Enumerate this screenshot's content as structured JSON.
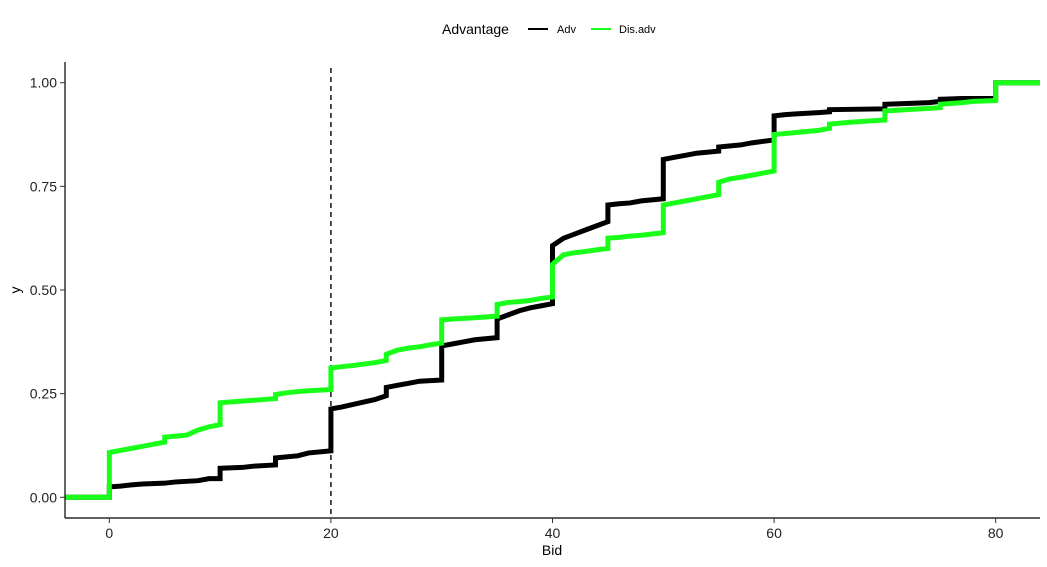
{
  "chart_data": {
    "type": "line",
    "subtype": "step-ecdf",
    "title": "",
    "xlabel": "Bid",
    "ylabel": "y",
    "xlim": [
      -4,
      84
    ],
    "ylim": [
      -0.05,
      1.05
    ],
    "x_ticks": [
      0,
      20,
      40,
      60,
      80
    ],
    "x_tick_labels": [
      "0",
      "20",
      "40",
      "60",
      "80"
    ],
    "y_ticks": [
      0,
      0.25,
      0.5,
      0.75,
      1.0
    ],
    "y_tick_labels": [
      "0.00",
      "0.25",
      "0.50",
      "0.75",
      "1.00"
    ],
    "grid": false,
    "legend": {
      "title": "Advantage",
      "position": "top"
    },
    "reference_line": {
      "x": 20,
      "style": "dashed",
      "color": "#000000"
    },
    "series": [
      {
        "name": "Adv",
        "color": "#000000",
        "points": [
          [
            -4,
            0.0
          ],
          [
            0,
            0.0
          ],
          [
            0,
            0.025
          ],
          [
            1,
            0.027
          ],
          [
            2,
            0.03
          ],
          [
            3,
            0.032
          ],
          [
            5,
            0.034
          ],
          [
            6,
            0.037
          ],
          [
            8,
            0.04
          ],
          [
            9,
            0.045
          ],
          [
            10,
            0.045
          ],
          [
            10,
            0.07
          ],
          [
            12,
            0.072
          ],
          [
            13,
            0.075
          ],
          [
            15,
            0.078
          ],
          [
            15,
            0.095
          ],
          [
            17,
            0.1
          ],
          [
            18,
            0.107
          ],
          [
            20,
            0.112
          ],
          [
            20,
            0.213
          ],
          [
            21,
            0.218
          ],
          [
            22,
            0.224
          ],
          [
            23,
            0.23
          ],
          [
            24,
            0.236
          ],
          [
            25,
            0.245
          ],
          [
            25,
            0.265
          ],
          [
            26,
            0.27
          ],
          [
            27,
            0.275
          ],
          [
            28,
            0.28
          ],
          [
            30,
            0.283
          ],
          [
            30,
            0.365
          ],
          [
            31,
            0.37
          ],
          [
            32,
            0.375
          ],
          [
            33,
            0.38
          ],
          [
            35,
            0.385
          ],
          [
            35,
            0.43
          ],
          [
            36,
            0.44
          ],
          [
            37,
            0.45
          ],
          [
            38,
            0.457
          ],
          [
            39,
            0.462
          ],
          [
            40,
            0.467
          ],
          [
            40,
            0.607
          ],
          [
            41,
            0.625
          ],
          [
            42,
            0.635
          ],
          [
            43,
            0.645
          ],
          [
            44,
            0.655
          ],
          [
            45,
            0.665
          ],
          [
            45,
            0.705
          ],
          [
            46,
            0.708
          ],
          [
            47,
            0.71
          ],
          [
            48,
            0.715
          ],
          [
            50,
            0.72
          ],
          [
            50,
            0.815
          ],
          [
            51,
            0.82
          ],
          [
            52,
            0.825
          ],
          [
            53,
            0.83
          ],
          [
            55,
            0.835
          ],
          [
            55,
            0.845
          ],
          [
            57,
            0.85
          ],
          [
            58,
            0.855
          ],
          [
            60,
            0.862
          ],
          [
            60,
            0.92
          ],
          [
            61,
            0.923
          ],
          [
            62,
            0.925
          ],
          [
            64,
            0.928
          ],
          [
            65,
            0.93
          ],
          [
            65,
            0.935
          ],
          [
            70,
            0.937
          ],
          [
            70,
            0.948
          ],
          [
            72,
            0.95
          ],
          [
            74,
            0.952
          ],
          [
            75,
            0.955
          ],
          [
            75,
            0.96
          ],
          [
            77,
            0.962
          ],
          [
            80,
            0.962
          ],
          [
            80,
            1.0
          ],
          [
            84,
            1.0
          ]
        ]
      },
      {
        "name": "Dis.adv",
        "color": "#1aff1a",
        "points": [
          [
            -4,
            0.0
          ],
          [
            0,
            0.0
          ],
          [
            0,
            0.108
          ],
          [
            1,
            0.113
          ],
          [
            2,
            0.118
          ],
          [
            3,
            0.123
          ],
          [
            4,
            0.128
          ],
          [
            5,
            0.133
          ],
          [
            5,
            0.145
          ],
          [
            7,
            0.15
          ],
          [
            8,
            0.162
          ],
          [
            9,
            0.17
          ],
          [
            10,
            0.175
          ],
          [
            10,
            0.228
          ],
          [
            11,
            0.23
          ],
          [
            12,
            0.232
          ],
          [
            13,
            0.234
          ],
          [
            14,
            0.236
          ],
          [
            15,
            0.238
          ],
          [
            15,
            0.248
          ],
          [
            16,
            0.252
          ],
          [
            17,
            0.255
          ],
          [
            18,
            0.257
          ],
          [
            20,
            0.26
          ],
          [
            20,
            0.312
          ],
          [
            22,
            0.318
          ],
          [
            24,
            0.325
          ],
          [
            25,
            0.33
          ],
          [
            25,
            0.345
          ],
          [
            26,
            0.355
          ],
          [
            27,
            0.36
          ],
          [
            28,
            0.363
          ],
          [
            29,
            0.368
          ],
          [
            30,
            0.372
          ],
          [
            30,
            0.428
          ],
          [
            31,
            0.43
          ],
          [
            33,
            0.433
          ],
          [
            35,
            0.437
          ],
          [
            35,
            0.465
          ],
          [
            36,
            0.47
          ],
          [
            37,
            0.472
          ],
          [
            38,
            0.475
          ],
          [
            39,
            0.48
          ],
          [
            40,
            0.483
          ],
          [
            40,
            0.562
          ],
          [
            41,
            0.585
          ],
          [
            42,
            0.59
          ],
          [
            43,
            0.593
          ],
          [
            44,
            0.597
          ],
          [
            45,
            0.6
          ],
          [
            45,
            0.625
          ],
          [
            46,
            0.627
          ],
          [
            47,
            0.63
          ],
          [
            48,
            0.632
          ],
          [
            49,
            0.635
          ],
          [
            50,
            0.638
          ],
          [
            50,
            0.705
          ],
          [
            51,
            0.71
          ],
          [
            52,
            0.715
          ],
          [
            53,
            0.72
          ],
          [
            54,
            0.725
          ],
          [
            55,
            0.73
          ],
          [
            55,
            0.76
          ],
          [
            56,
            0.768
          ],
          [
            57,
            0.772
          ],
          [
            58,
            0.777
          ],
          [
            59,
            0.782
          ],
          [
            60,
            0.787
          ],
          [
            60,
            0.875
          ],
          [
            62,
            0.88
          ],
          [
            64,
            0.885
          ],
          [
            65,
            0.89
          ],
          [
            65,
            0.9
          ],
          [
            67,
            0.905
          ],
          [
            70,
            0.91
          ],
          [
            70,
            0.932
          ],
          [
            72,
            0.935
          ],
          [
            74,
            0.938
          ],
          [
            75,
            0.94
          ],
          [
            75,
            0.948
          ],
          [
            77,
            0.952
          ],
          [
            78,
            0.955
          ],
          [
            80,
            0.957
          ],
          [
            80,
            1.0
          ],
          [
            84,
            1.0
          ]
        ]
      }
    ]
  }
}
